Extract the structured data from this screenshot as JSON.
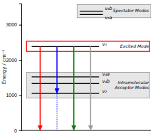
{
  "chart_data": {
    "type": "energy_levels",
    "y_label": "Energy / cm⁻¹",
    "ylim": [
      0,
      3600
    ],
    "yticks": [
      0,
      1000,
      2000,
      3000
    ],
    "groups": [
      {
        "text": [
          "Spectator Modes"
        ],
        "lo": 3200,
        "hi": 3570,
        "categories": [
          "ν₃b",
          "ν₃a"
        ],
        "values": [
          3380,
          3290
        ]
      },
      {
        "text": [
          "Excited Mode"
        ],
        "lo": 2240,
        "hi": 2530,
        "color": "red",
        "categories": [
          "ν₁"
        ],
        "values": [
          2380
        ]
      },
      {
        "text": [
          "Intramolecular",
          "Acceptor Modes"
        ],
        "lo": 920,
        "hi": 1650,
        "categories": [
          "ν₄a",
          "ν₄b",
          "ν₂"
        ],
        "values": [
          1520,
          1330,
          1050
        ]
      }
    ],
    "arrows": [
      {
        "from": 2380,
        "to": 0,
        "color": "red"
      },
      {
        "from": 2380,
        "to": 1050,
        "color": "blue"
      },
      {
        "from": 2380,
        "to": 0,
        "color": "green"
      },
      {
        "from": 2380,
        "to": 0,
        "color": "#999999"
      }
    ]
  }
}
